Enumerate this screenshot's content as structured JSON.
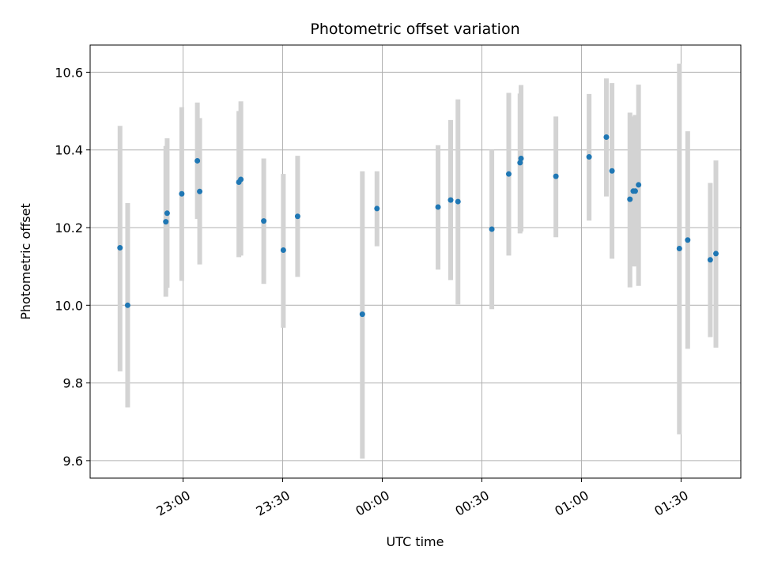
{
  "chart_data": {
    "type": "scatter",
    "title": "Photometric offset variation",
    "xlabel": "UTC time",
    "ylabel": "Photometric offset",
    "x_ticks": [
      "23:00",
      "23:30",
      "00:00",
      "00:30",
      "01:00",
      "01:30"
    ],
    "y_ticks": [
      "9.6",
      "9.8",
      "10.0",
      "10.2",
      "10.4",
      "10.6"
    ],
    "y_tick_values": [
      9.6,
      9.8,
      10.0,
      10.2,
      10.4,
      10.6
    ],
    "xlim_minutes": [
      -28,
      168
    ],
    "ylim": [
      9.555,
      10.67
    ],
    "grid": true,
    "x_tick_rotation_deg": 30,
    "colors": {
      "point": "#1f77b4",
      "errorbar": "#d3d3d3",
      "grid": "#b0b0b0"
    },
    "series": [
      {
        "x_minutes": [
          -19,
          -16.7,
          -5.2,
          -4.8,
          -0.4,
          4.3,
          5,
          16.8,
          17.4,
          24.3,
          30.2,
          34.5,
          54,
          58.4,
          76.8,
          80.6,
          82.8,
          93,
          98.1,
          101.5,
          101.8,
          112.3,
          122.3,
          127.5,
          129.2,
          134.6,
          135.6,
          136.2,
          137.2,
          149.5,
          152,
          158.8,
          160.5
        ],
        "y": [
          10.148,
          10.0,
          10.215,
          10.237,
          10.287,
          10.372,
          10.293,
          10.317,
          10.324,
          10.217,
          10.142,
          10.229,
          9.977,
          10.249,
          10.253,
          10.271,
          10.267,
          10.196,
          10.338,
          10.367,
          10.378,
          10.332,
          10.382,
          10.433,
          10.346,
          10.273,
          10.294,
          10.294,
          10.31,
          10.146,
          10.168,
          10.117,
          10.133
        ],
        "y_low": [
          9.83,
          9.737,
          10.022,
          10.045,
          10.063,
          10.222,
          10.105,
          10.124,
          10.128,
          10.055,
          9.942,
          10.073,
          9.605,
          10.152,
          10.092,
          10.065,
          10.002,
          9.99,
          10.128,
          10.185,
          10.19,
          10.175,
          10.218,
          10.28,
          10.12,
          10.046,
          10.1,
          10.1,
          10.05,
          9.668,
          9.888,
          9.918,
          9.891
        ],
        "y_high": [
          10.462,
          10.263,
          10.41,
          10.43,
          10.51,
          10.522,
          10.482,
          10.5,
          10.525,
          10.378,
          10.338,
          10.385,
          10.345,
          10.345,
          10.412,
          10.477,
          10.53,
          10.4,
          10.547,
          10.545,
          10.567,
          10.486,
          10.544,
          10.584,
          10.572,
          10.496,
          10.486,
          10.49,
          10.568,
          10.622,
          10.448,
          10.315,
          10.373
        ]
      }
    ]
  }
}
